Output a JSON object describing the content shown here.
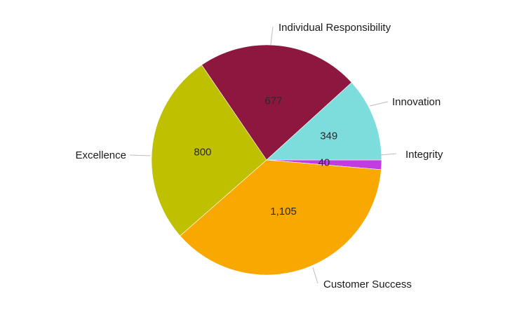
{
  "chart_data": {
    "type": "pie",
    "title": "",
    "start_angle_deg": 0,
    "direction": "clockwise",
    "legend": "none",
    "slices": [
      {
        "label": "Integrity",
        "value": 40,
        "value_label": "40",
        "color": "#c13de0"
      },
      {
        "label": "Customer Success",
        "value": 1105,
        "value_label": "1,105",
        "color": "#f8a800"
      },
      {
        "label": "Excellence",
        "value": 800,
        "value_label": "800",
        "color": "#bfc000"
      },
      {
        "label": "Individual Responsibility",
        "value": 677,
        "value_label": "677",
        "color": "#8e1740"
      },
      {
        "label": "Innovation",
        "value": 349,
        "value_label": "349",
        "color": "#7ddcdc"
      }
    ]
  }
}
